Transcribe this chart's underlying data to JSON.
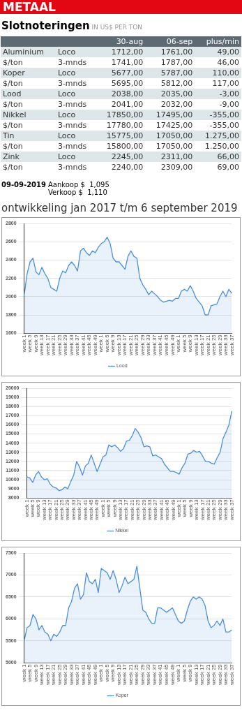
{
  "chart_data": [
    {
      "type": "other",
      "title": "METAAL",
      "subtitle": "Slotnoteringen",
      "annotations": [
        "IN US$ PER TON",
        "30-aug",
        "06-sep",
        "plus/min",
        "Aluminium",
        "Loco",
        "1712,00",
        "1761,00",
        "49,00",
        "$/ton",
        "3-mnds",
        "1741,00",
        "1787,00",
        "46,00",
        "Koper",
        "Loco",
        "5677,00",
        "5787,00",
        "110,00",
        "$/ton",
        "3-mnds",
        "5695,00",
        "5812,00",
        "117,00",
        "Lood",
        "Loco",
        "2038,00",
        "2035,00",
        "-3,00",
        "$/ton",
        "3-mnds",
        "2041,00",
        "2032,00",
        "-9,00",
        "Nikkel",
        "Loco",
        "17850,00",
        "17495,00",
        "-355,00",
        "$/ton",
        "3-mnds",
        "17780,00",
        "17425,00",
        "-355,00",
        "Tin",
        "Loco",
        "15775,00",
        "17050,00",
        "1.275,00",
        "$/ton",
        "3-mnds",
        "15800,00",
        "17050,00",
        "1.250,00",
        "Zink",
        "Loco",
        "2245,00",
        "2311,00",
        "66,00",
        "$/ton",
        "3-mnds",
        "2240,00",
        "2309,00",
        "69,00",
        "09-09-2019",
        "Aankoop $  1,095",
        "Verkoop $  1,110"
      ]
    },
    {
      "type": "area",
      "title": "ontwikkeling jan 2017 t/m 6 september 2019",
      "categories": [
        "week 1",
        null,
        "week 5",
        null,
        "week 9",
        null,
        "week 13",
        null,
        "week 17",
        null,
        "week 21",
        null,
        "week 25",
        null,
        "week 29",
        null,
        "week 33",
        null,
        "week 37",
        null,
        "week 41",
        null,
        "week 45",
        null,
        "week 49",
        null,
        "week 1",
        null,
        "week 5",
        null,
        "week 9",
        null,
        "week 13",
        null,
        "week 17",
        null,
        "week 21",
        null,
        "week 25",
        null,
        "week 29",
        null,
        "week 33",
        null,
        "week 37",
        null,
        "week 41",
        null,
        "week 45",
        null,
        "week 49",
        null,
        "week 1",
        null,
        "week 5",
        null,
        "week 9",
        null,
        "week 13",
        null,
        "week 17",
        null,
        "week 21",
        null,
        "week 25",
        null,
        "week 29",
        null,
        "week 33",
        null,
        "week 37"
      ],
      "series": [
        {
          "name": "Lood",
          "color": "#4a8fde",
          "values": [
            2010,
            2250,
            2380,
            2420,
            2270,
            2240,
            2320,
            2250,
            2200,
            2100,
            2080,
            2060,
            2200,
            2280,
            2260,
            2340,
            2380,
            2340,
            2280,
            2500,
            2530,
            2480,
            2450,
            2500,
            2480,
            2540,
            2580,
            2600,
            2650,
            2580,
            2420,
            2380,
            2380,
            2340,
            2300,
            2440,
            2500,
            2440,
            2420,
            2200,
            2130,
            2080,
            2020,
            2060,
            2030,
            2000,
            1960,
            1940,
            1950,
            1960,
            1950,
            1980,
            1980,
            2060,
            2080,
            2060,
            2120,
            2060,
            1980,
            1940,
            1900,
            1800,
            1800,
            1900,
            1910,
            1920,
            2000,
            2060,
            2000,
            2080,
            2035
          ]
        }
      ],
      "ylim": [
        1600,
        2800
      ],
      "yticks": [
        1600,
        1800,
        2000,
        2200,
        2400,
        2600,
        2800
      ],
      "grid": "y",
      "legend": "bottom"
    },
    {
      "type": "area",
      "categories": [
        "week 1",
        null,
        "week 5",
        null,
        "week 9",
        null,
        "week 13",
        null,
        "week 17",
        null,
        "week 21",
        null,
        "week 25",
        null,
        "week 29",
        null,
        "week 33",
        null,
        "week 37",
        null,
        "week 41",
        null,
        "week 45",
        null,
        "week 49",
        null,
        "week 1",
        null,
        "week 5",
        null,
        "week 9",
        null,
        "week 13",
        null,
        "week 17",
        null,
        "week 21",
        null,
        "week 25",
        null,
        "week 29",
        null,
        "week 33",
        null,
        "week 37",
        null,
        "week 41",
        null,
        "week 45",
        null,
        "week 49",
        null,
        "week 1",
        null,
        "week 5",
        null,
        "week 9",
        null,
        "week 13",
        null,
        "week 17",
        null,
        "week 21",
        null,
        "week 25",
        null,
        "week 29",
        null,
        "week 33",
        null,
        "week 37"
      ],
      "series": [
        {
          "name": "Nikkel",
          "color": "#4a8fde",
          "values": [
            10300,
            10200,
            9700,
            10500,
            10900,
            10300,
            10000,
            10100,
            9500,
            9200,
            9100,
            8800,
            8900,
            9200,
            9000,
            9800,
            10500,
            12000,
            11400,
            10500,
            11500,
            11800,
            12700,
            11800,
            10900,
            11700,
            12500,
            12700,
            13800,
            13600,
            13800,
            13500,
            13100,
            13400,
            14200,
            14300,
            14800,
            15600,
            15200,
            14600,
            13600,
            13700,
            13600,
            12600,
            12700,
            12500,
            12300,
            11700,
            11300,
            10900,
            10900,
            10800,
            10600,
            11300,
            11800,
            12800,
            12900,
            13200,
            13000,
            13100,
            12600,
            12000,
            12000,
            11800,
            11700,
            12400,
            13000,
            14500,
            15200,
            16000,
            17500
          ]
        }
      ],
      "ylim": [
        8000,
        20000
      ],
      "yticks": [
        8000,
        9000,
        10000,
        11000,
        12000,
        13000,
        14000,
        15000,
        16000,
        17000,
        18000,
        19000,
        20000
      ],
      "grid": "y",
      "legend": "bottom"
    },
    {
      "type": "area",
      "categories": [
        "week 1",
        null,
        "week 5",
        null,
        "week 9",
        null,
        "week 13",
        null,
        "week 17",
        null,
        "week 21",
        null,
        "week 25",
        null,
        "week 29",
        null,
        "week 33",
        null,
        "week 37",
        null,
        "week 41",
        null,
        "week 45",
        null,
        "week 49",
        null,
        "week 1",
        null,
        "week 5",
        null,
        "week 9",
        null,
        "week 13",
        null,
        "week 17",
        null,
        "week 21",
        null,
        "week 25",
        null,
        "week 29",
        null,
        "week 33",
        null,
        "week 37",
        null,
        "week 41",
        null,
        "week 45",
        null,
        "week 49",
        null,
        "week 1",
        null,
        "week 5",
        null,
        "week 9",
        null,
        "week 13",
        null,
        "week 17",
        null,
        "week 21",
        null,
        "week 25",
        null,
        "week 29",
        null,
        "week 33",
        null,
        "week 37"
      ],
      "series": [
        {
          "name": "Koper",
          "color": "#4a8fde",
          "values": [
            5500,
            5800,
            5850,
            6100,
            6000,
            5750,
            5850,
            5700,
            5650,
            5500,
            5650,
            5600,
            5700,
            5850,
            5850,
            6250,
            6400,
            6700,
            6800,
            6450,
            6550,
            7050,
            6850,
            6800,
            6900,
            6600,
            7150,
            7100,
            7050,
            6900,
            7100,
            6900,
            6600,
            6750,
            6950,
            6800,
            6850,
            6900,
            7200,
            6700,
            6200,
            6150,
            6000,
            5900,
            5900,
            6250,
            6250,
            6200,
            6150,
            6200,
            6250,
            6100,
            5950,
            5900,
            5950,
            6200,
            6400,
            6500,
            6450,
            6500,
            6450,
            6300,
            5950,
            5800,
            5850,
            5950,
            5850,
            6000,
            5700,
            5700,
            5750
          ]
        }
      ],
      "ylim": [
        5000,
        7500
      ],
      "yticks": [
        5000,
        5500,
        6000,
        6500,
        7000,
        7500
      ],
      "grid": "y",
      "legend": "bottom"
    }
  ]
}
